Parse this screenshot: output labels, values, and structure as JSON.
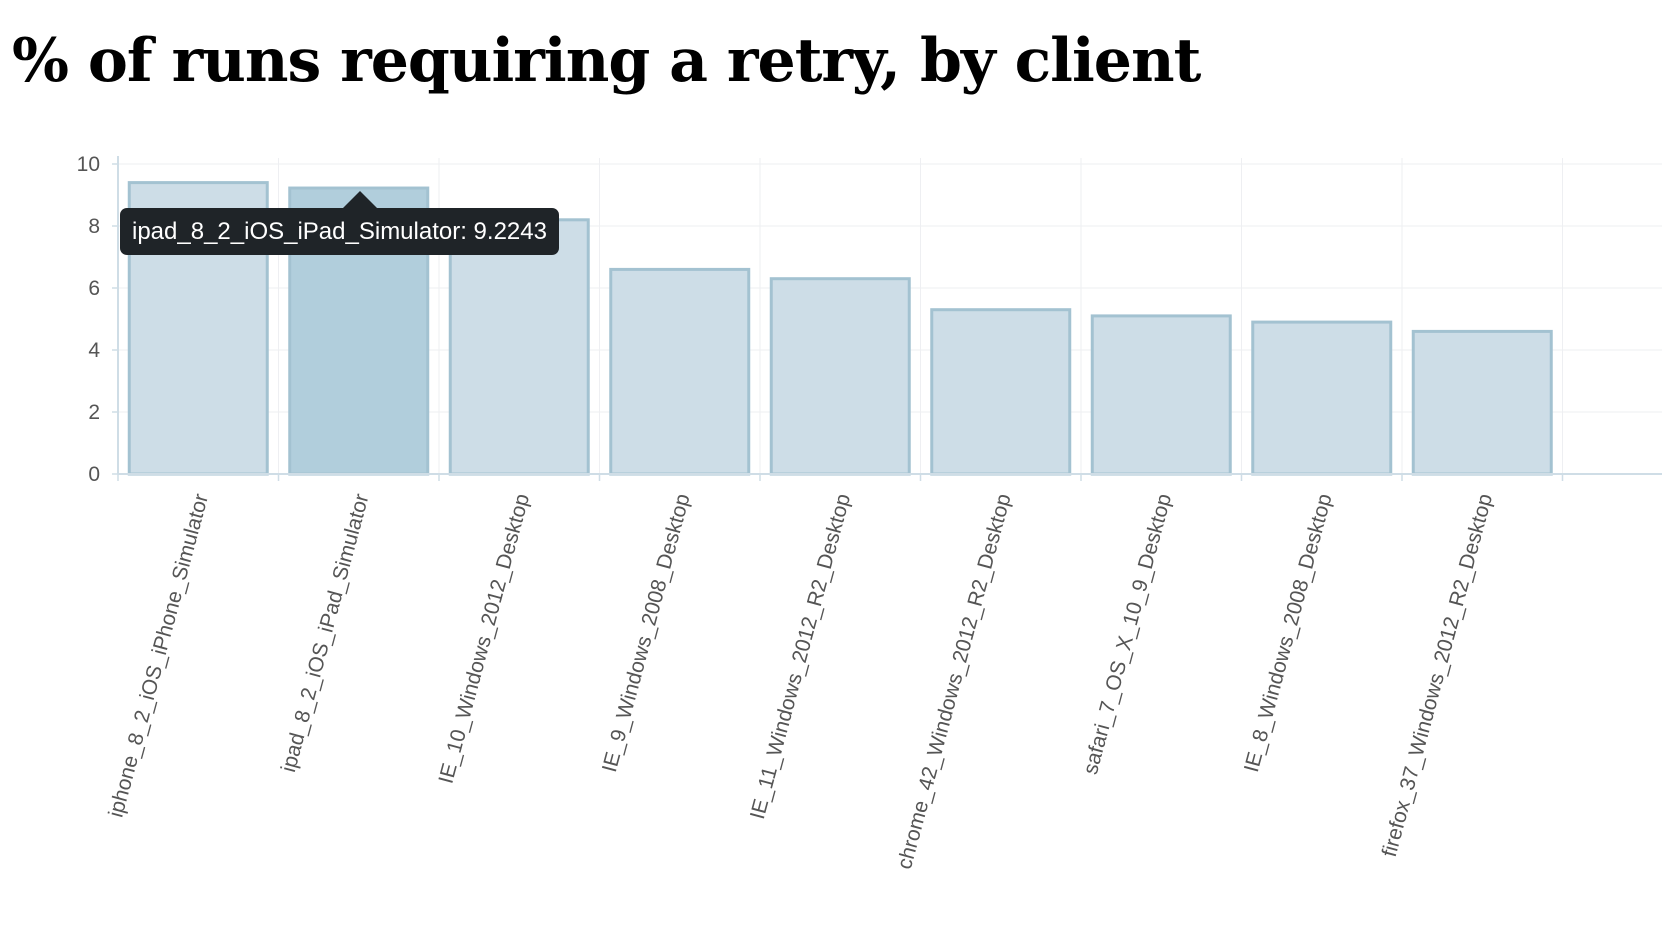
{
  "page": {
    "title": "% of runs requiring a retry, by client"
  },
  "tooltip": {
    "category": "ipad_8_2_iOS_iPad_Simulator",
    "value": "9.2243",
    "text": "ipad_8_2_iOS_iPad_Simulator: 9.2243"
  },
  "colors": {
    "bar_fill": "#cddde7",
    "bar_stroke": "#a3c2d1",
    "bar_fill_active": "#b1cedc",
    "grid": "#eeeff2",
    "axis": "#cfdde6"
  },
  "chart_data": {
    "type": "bar",
    "title": "% of runs requiring a retry, by client",
    "xlabel": "",
    "ylabel": "",
    "ylim": [
      0,
      10
    ],
    "yticks": [
      0,
      2,
      4,
      6,
      8,
      10
    ],
    "grid": true,
    "categories": [
      "iphone_8_2_iOS_iPhone_Simulator",
      "ipad_8_2_iOS_iPad_Simulator",
      "IE_10_Windows_2012_Desktop",
      "IE_9_Windows_2008_Desktop",
      "IE_11_Windows_2012_R2_Desktop",
      "chrome_42_Windows_2012_R2_Desktop",
      "safari_7_OS_X_10_9_Desktop",
      "IE_8_Windows_2008_Desktop",
      "firefox_37_Windows_2012_R2_Desktop"
    ],
    "values": [
      9.4,
      9.2243,
      8.2,
      6.6,
      6.3,
      5.3,
      5.1,
      4.9,
      4.6
    ],
    "highlighted_index": 1
  }
}
